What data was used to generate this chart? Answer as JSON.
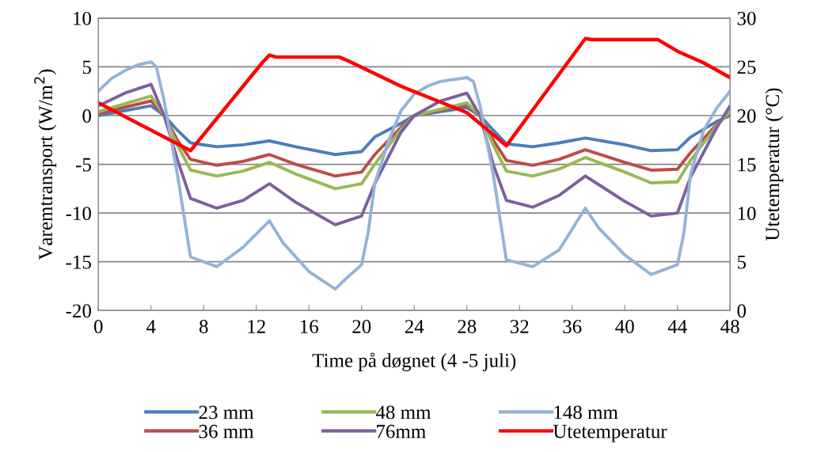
{
  "chart_data": {
    "type": "line",
    "xlabel": "Time på døgnet (4 -5 juli)",
    "ylabel": "Varemtransport (W/m$^{2}$)",
    "y2label": "Utetemperatur (°C)",
    "xlim": [
      0,
      48
    ],
    "xticks": [
      0,
      4,
      8,
      12,
      16,
      20,
      24,
      28,
      32,
      36,
      40,
      44,
      48
    ],
    "ylim": [
      -20,
      10
    ],
    "yticks": [
      -20,
      -15,
      -10,
      -5,
      0,
      5,
      10
    ],
    "y2lim": [
      0,
      30
    ],
    "y2ticks": [
      0,
      5,
      10,
      15,
      20,
      25,
      30
    ],
    "grid": "y",
    "legend": "bottom",
    "marker": "none",
    "line_style": "solid",
    "series": [
      {
        "name": "23 mm",
        "color": "#4a7ebb",
        "x": [
          0,
          4,
          5,
          6,
          7,
          9,
          11,
          13,
          15,
          18,
          20,
          21,
          23,
          24,
          28,
          29,
          30,
          31,
          33,
          35,
          37,
          40,
          42,
          44,
          45,
          47,
          48
        ],
        "values": [
          0,
          1.0,
          0,
          -1.5,
          -2.8,
          -3.2,
          -3.0,
          -2.6,
          -3.2,
          -4.0,
          -3.7,
          -2.2,
          -0.8,
          0,
          0.8,
          0,
          -1.5,
          -2.9,
          -3.2,
          -2.8,
          -2.3,
          -3.0,
          -3.6,
          -3.5,
          -2.2,
          -0.6,
          0
        ]
      },
      {
        "name": "36 mm",
        "color": "#be4b48",
        "x": [
          0,
          4,
          5,
          6,
          7,
          9,
          11,
          13,
          15,
          18,
          20,
          21,
          23,
          24,
          28,
          29,
          30,
          31,
          33,
          35,
          37,
          40,
          42,
          44,
          45,
          47,
          48
        ],
        "values": [
          0.2,
          1.5,
          0,
          -2.5,
          -4.5,
          -5.1,
          -4.7,
          -4.0,
          -5.0,
          -6.2,
          -5.8,
          -4.0,
          -1.2,
          0,
          1.1,
          0,
          -2.5,
          -4.6,
          -5.1,
          -4.5,
          -3.5,
          -4.8,
          -5.6,
          -5.5,
          -3.8,
          -0.9,
          0.3
        ]
      },
      {
        "name": "48 mm",
        "color": "#98b954",
        "x": [
          0,
          4,
          5,
          6,
          7,
          9,
          11,
          13,
          15,
          18,
          20,
          21,
          23,
          24,
          28,
          29,
          30,
          31,
          33,
          35,
          37,
          40,
          42,
          44,
          45,
          47,
          48
        ],
        "values": [
          0.4,
          2.0,
          0,
          -3.0,
          -5.6,
          -6.2,
          -5.7,
          -4.8,
          -6.0,
          -7.5,
          -7.0,
          -5.0,
          -1.4,
          0,
          1.3,
          0,
          -3.0,
          -5.7,
          -6.2,
          -5.5,
          -4.3,
          -5.8,
          -6.9,
          -6.8,
          -4.6,
          -1.0,
          0.4
        ]
      },
      {
        "name": "76mm",
        "color": "#7d60a0",
        "x": [
          0,
          2,
          4,
          5,
          6,
          7,
          9,
          11,
          13,
          15,
          18,
          20,
          21,
          23,
          24,
          26,
          28,
          29,
          30,
          31,
          33,
          35,
          37,
          40,
          42,
          44,
          45,
          47,
          48
        ],
        "values": [
          1.0,
          2.3,
          3.2,
          0,
          -4.5,
          -8.5,
          -9.5,
          -8.7,
          -7.0,
          -8.9,
          -11.2,
          -10.3,
          -7.0,
          -1.7,
          0,
          1.5,
          2.3,
          0,
          -5.0,
          -8.7,
          -9.4,
          -8.2,
          -6.2,
          -8.8,
          -10.3,
          -10.0,
          -6.3,
          -1.2,
          1.0
        ]
      },
      {
        "name": "148 mm",
        "color": "#95b3d7",
        "x": [
          0,
          1,
          2,
          3,
          4,
          4.4,
          5,
          6,
          7,
          9,
          11,
          13,
          14,
          16,
          18,
          19,
          20,
          20.5,
          21,
          22,
          23,
          24,
          25,
          26,
          28,
          28.5,
          29,
          30,
          31,
          33,
          35,
          37,
          38,
          40,
          42,
          43,
          44,
          44.5,
          45,
          46,
          47,
          48
        ],
        "values": [
          2.5,
          3.8,
          4.6,
          5.2,
          5.5,
          5.0,
          1.5,
          -6.0,
          -14.5,
          -15.5,
          -13.5,
          -10.8,
          -13.0,
          -16.0,
          -17.8,
          -16.5,
          -15.3,
          -12.0,
          -7.0,
          -2.8,
          0.5,
          2.2,
          3.0,
          3.5,
          3.9,
          3.5,
          1.0,
          -6.0,
          -14.8,
          -15.5,
          -13.8,
          -9.5,
          -11.5,
          -14.3,
          -16.3,
          -15.8,
          -15.3,
          -12.0,
          -6.0,
          -1.5,
          0.8,
          2.5
        ]
      },
      {
        "name": "Utetemperatur",
        "color": "#ff0000",
        "axis": "y2",
        "x": [
          0,
          7,
          12.5,
          13,
          13.5,
          18.3,
          19,
          21,
          23,
          28,
          31,
          37,
          37.5,
          42.5,
          44,
          46,
          48
        ],
        "values": [
          21.3,
          16.4,
          25.5,
          26.2,
          26.0,
          26.0,
          25.6,
          24.3,
          23.0,
          20.3,
          16.9,
          27.9,
          27.8,
          27.8,
          26.6,
          25.4,
          23.9
        ]
      }
    ]
  }
}
